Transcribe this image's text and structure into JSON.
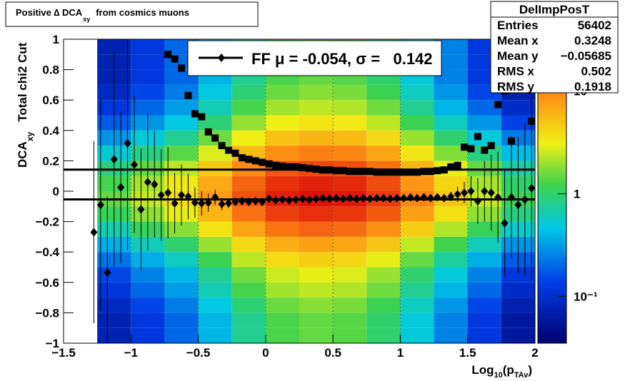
{
  "chart_data": {
    "type": "heatmap",
    "title": [
      "Positive ∆ DCA",
      "xy",
      "from cosmics muons"
    ],
    "ylabel": [
      "DCA",
      "xy",
      "Total chi2 Cut"
    ],
    "xlabel": [
      "Log",
      "10",
      "(p",
      "TAv",
      ")"
    ],
    "xlim": [
      -1.5,
      2
    ],
    "ylim": [
      -1,
      1
    ],
    "xticks": [
      {
        "value": -1.5,
        "label": "−1.5"
      },
      {
        "value": -1,
        "label": "−1"
      },
      {
        "value": -0.5,
        "label": "−0.5"
      },
      0,
      0.5,
      1,
      1.5,
      2
    ],
    "yticks": [
      {
        "value": -1,
        "label": "−1"
      },
      {
        "value": -0.8,
        "label": "−0.8"
      },
      {
        "value": -0.6,
        "label": "−0.6"
      },
      {
        "value": -0.4,
        "label": "−0.4"
      },
      {
        "value": -0.2,
        "label": "−0.2"
      },
      0,
      0.2,
      0.4,
      0.6,
      0.8,
      1
    ],
    "xgrid": true,
    "zlog": true,
    "zlim": [
      0.035,
      32
    ],
    "zticks": [
      {
        "value": 0.1,
        "label": "10⁻¹"
      },
      1,
      10
    ],
    "heatmap": {
      "xbins": [
        -1.5,
        -1.25,
        -1,
        -0.75,
        -0.5,
        -0.25,
        0,
        0.25,
        0.5,
        0.75,
        1,
        1.25,
        1.5,
        1.75,
        2
      ],
      "ybins": [
        -1,
        -0.9,
        -0.8,
        -0.7,
        -0.6,
        -0.5,
        -0.4,
        -0.3,
        -0.2,
        -0.1,
        0,
        0.1,
        0.2,
        0.3,
        0.4,
        0.5,
        0.6,
        0.7,
        0.8,
        0.9,
        1
      ],
      "z": [
        [
          0,
          0.075,
          0.125,
          0.2,
          0.4,
          0.8,
          1.3,
          1.5,
          1.4,
          1,
          0.5,
          0.25,
          0.125,
          0.06
        ],
        [
          0,
          0.075,
          0.125,
          0.2,
          0.4,
          0.8,
          1.3,
          1.5,
          1.4,
          1,
          0.5,
          0.25,
          0.125,
          0.06
        ],
        [
          0,
          0.09,
          0.15,
          0.24,
          0.48,
          0.96,
          1.56,
          1.8,
          1.68,
          1.2,
          0.6,
          0.3,
          0.15,
          0.072
        ],
        [
          0,
          0.12,
          0.2,
          0.32,
          0.64,
          1.28,
          2.08,
          2.4,
          2.24,
          1.6,
          0.8,
          0.4,
          0.2,
          0.096
        ],
        [
          0,
          0.15,
          0.25,
          0.4,
          0.8,
          1.6,
          2.6,
          3,
          2.8,
          2,
          1,
          0.5,
          0.25,
          0.12
        ],
        [
          0,
          0.225,
          0.375,
          0.6,
          1.2,
          2.4,
          3.9,
          4.5,
          4.2,
          3,
          1.5,
          0.75,
          0.375,
          0.18
        ],
        [
          0,
          0.375,
          0.625,
          1,
          2,
          4,
          6.5,
          7.5,
          7,
          5,
          2.5,
          1.25,
          0.625,
          0.3
        ],
        [
          0,
          0.675,
          1.125,
          1.8,
          3.6,
          7.2,
          11.7,
          13.5,
          12.6,
          9,
          4.5,
          2.25,
          1.125,
          0.54
        ],
        [
          0,
          1.125,
          1.875,
          3,
          6,
          12,
          19.5,
          22.5,
          21,
          15,
          7.5,
          3.75,
          1.875,
          0.9
        ],
        [
          0,
          1.5,
          2.5,
          4,
          8,
          16,
          26,
          30,
          28,
          20,
          10,
          5,
          2.5,
          1.2
        ],
        [
          0,
          1.275,
          2.125,
          3.4,
          6.8,
          13.6,
          22.1,
          25.5,
          23.8,
          17,
          8.5,
          4.25,
          2.125,
          1.02
        ],
        [
          0,
          0.9,
          1.5,
          2.4,
          4.8,
          9.6,
          15.6,
          18,
          16.8,
          12,
          6,
          3,
          1.5,
          0.72
        ],
        [
          0,
          0.525,
          0.875,
          1.4,
          2.8,
          5.6,
          9.1,
          10.5,
          9.8,
          7,
          3.5,
          1.75,
          0.875,
          0.42
        ],
        [
          0,
          0.3,
          0.5,
          0.8,
          1.6,
          3.2,
          5.2,
          6,
          5.6,
          4,
          2,
          1,
          0.5,
          0.24
        ],
        [
          0,
          0.18,
          0.3,
          0.48,
          0.96,
          1.92,
          3.12,
          3.6,
          3.36,
          2.4,
          1.2,
          0.6,
          0.3,
          0.144
        ],
        [
          0,
          0.12,
          0.2,
          0.32,
          0.64,
          1.28,
          2.08,
          2.4,
          2.24,
          1.6,
          0.8,
          0.4,
          0.2,
          0.096
        ],
        [
          0,
          0.09,
          0.15,
          0.24,
          0.48,
          0.96,
          1.56,
          1.8,
          1.68,
          1.2,
          0.6,
          0.3,
          0.15,
          0.072
        ],
        [
          0,
          0.075,
          0.125,
          0.2,
          0.4,
          0.8,
          1.3,
          1.5,
          1.4,
          1,
          0.5,
          0.25,
          0.125,
          0.06
        ],
        [
          0,
          0.075,
          0.125,
          0.2,
          0.4,
          0.8,
          1.3,
          1.5,
          1.4,
          1,
          0.5,
          0.25,
          0.125,
          0.06
        ],
        [
          0,
          0.075,
          0.125,
          0.2,
          0.4,
          0.8,
          1.3,
          1.5,
          1.4,
          1,
          0.5,
          0.25,
          0.125,
          0.06
        ]
      ]
    },
    "profiles": [
      {
        "marker": "diamond",
        "color": "#000000",
        "x": [
          -1.275,
          -1.225,
          -1.175,
          -1.125,
          -1.075,
          -1.025,
          -0.975,
          -0.925,
          -0.875,
          -0.825,
          -0.775,
          -0.725,
          -0.675,
          -0.625,
          -0.575,
          -0.525,
          -0.475,
          -0.425,
          -0.375,
          -0.325,
          -0.275,
          -0.225,
          -0.175,
          -0.125,
          -0.075,
          -0.025,
          0.025,
          0.075,
          0.125,
          0.175,
          0.225,
          0.275,
          0.325,
          0.375,
          0.425,
          0.475,
          0.525,
          0.575,
          0.625,
          0.675,
          0.725,
          0.775,
          0.825,
          0.875,
          0.925,
          0.975,
          1.025,
          1.075,
          1.125,
          1.175,
          1.225,
          1.275,
          1.325,
          1.375,
          1.425,
          1.475,
          1.525,
          1.575,
          1.625,
          1.675,
          1.725,
          1.775,
          1.825,
          1.875,
          1.925,
          1.975
        ],
        "values": [
          -0.27,
          -0.09,
          -0.535,
          0.21,
          0.025,
          0.315,
          0.175,
          -0.12,
          0.06,
          0.045,
          -0.025,
          -0.01,
          -0.08,
          -0.025,
          -0.035,
          -0.075,
          -0.08,
          -0.075,
          -0.04,
          -0.085,
          -0.08,
          -0.07,
          -0.065,
          -0.07,
          -0.065,
          -0.07,
          -0.05,
          -0.06,
          -0.055,
          -0.06,
          -0.055,
          -0.05,
          -0.055,
          -0.05,
          -0.045,
          -0.05,
          -0.045,
          -0.05,
          -0.045,
          -0.05,
          -0.045,
          -0.05,
          -0.045,
          -0.045,
          -0.05,
          -0.045,
          -0.045,
          -0.04,
          -0.045,
          -0.04,
          -0.045,
          -0.04,
          -0.045,
          -0.035,
          -0.02,
          -0.01,
          0,
          -0.065,
          0,
          -0.01,
          -0.04,
          -0.21,
          -0.04,
          -0.09,
          -0.055,
          0.02
        ],
        "errors": [
          0.6,
          0.7,
          0.5,
          0.7,
          0.5,
          0.7,
          0.45,
          0.4,
          0.45,
          0.35,
          0.3,
          0.3,
          0.2,
          0.2,
          0.15,
          0.1,
          0.08,
          0.06,
          0.05,
          0.04,
          0.03,
          0.02,
          0.01,
          0.01,
          0.01,
          0.01,
          0.01,
          0.01,
          0.01,
          0.01,
          0.01,
          0.01,
          0.01,
          0.01,
          0.01,
          0.01,
          0.01,
          0.01,
          0.01,
          0.01,
          0.01,
          0.01,
          0.01,
          0.01,
          0.01,
          0.01,
          0.01,
          0.01,
          0.01,
          0.01,
          0.01,
          0.01,
          0.01,
          0.03,
          0.05,
          0.07,
          0.1,
          0.15,
          0.2,
          0.25,
          0.3,
          0.35,
          0.4,
          0.45,
          0.5,
          0.6
        ]
      },
      {
        "marker": "square",
        "color": "#000000",
        "x": [
          -0.725,
          -0.675,
          -0.625,
          -0.575,
          -0.525,
          -0.475,
          -0.425,
          -0.375,
          -0.325,
          -0.275,
          -0.225,
          -0.175,
          -0.125,
          -0.075,
          -0.025,
          0.025,
          0.075,
          0.125,
          0.175,
          0.225,
          0.275,
          0.325,
          0.375,
          0.425,
          0.475,
          0.525,
          0.575,
          0.625,
          0.675,
          0.725,
          0.775,
          0.825,
          0.875,
          0.925,
          0.975,
          1.025,
          1.075,
          1.125,
          1.175,
          1.225,
          1.275,
          1.325,
          1.375,
          1.425,
          1.475,
          1.525,
          1.575,
          1.625,
          1.675,
          1.725,
          1.775,
          1.825,
          1.875,
          1.925,
          1.975
        ],
        "values": [
          0.9,
          0.87,
          0.81,
          0.63,
          0.51,
          0.49,
          0.39,
          0.35,
          0.3,
          0.27,
          0.25,
          0.22,
          0.21,
          0.2,
          0.19,
          0.18,
          0.17,
          0.165,
          0.16,
          0.16,
          0.155,
          0.15,
          0.145,
          0.14,
          0.14,
          0.135,
          0.135,
          0.13,
          0.13,
          0.13,
          0.13,
          0.125,
          0.125,
          0.125,
          0.125,
          0.125,
          0.125,
          0.125,
          0.13,
          0.13,
          0.135,
          0.14,
          0.16,
          0.17,
          0.29,
          0.28,
          0.36,
          0.27,
          0.3,
          0.57,
          0.66,
          0.33,
          0.67,
          0.71,
          0.46
        ]
      }
    ],
    "fit": {
      "mu": -0.054,
      "sigma": 0.142,
      "color": "#000000"
    },
    "legend": "FF μ = -0.054, σ =   0.142",
    "stats": {
      "title": "DelImpPosT",
      "rows": [
        [
          "Entries",
          "56402"
        ],
        [
          "Mean x",
          "0.3248"
        ],
        [
          "Mean y",
          "−0.05685"
        ],
        [
          "RMS x",
          "0.502"
        ],
        [
          "RMS y",
          "0.1918"
        ]
      ]
    }
  }
}
